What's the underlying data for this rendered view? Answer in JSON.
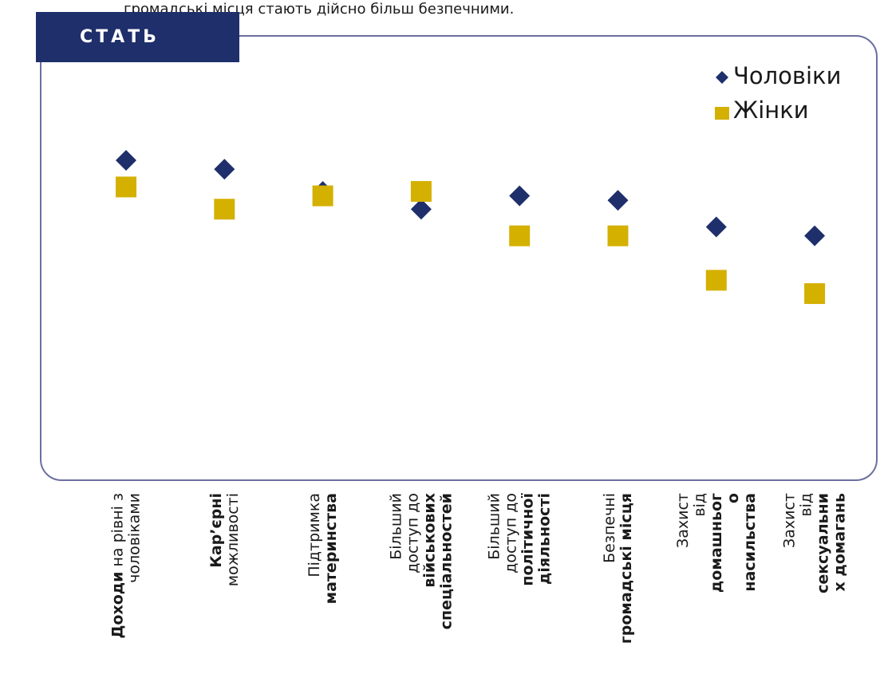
{
  "header": {
    "title": "СТАТЬ",
    "clipped_text": "громадські місця стають дійсно більш безпечними."
  },
  "chart_data": {
    "type": "scatter",
    "categories": [
      [
        [
          {
            "text": "Доходи",
            "bold": true
          },
          {
            "text": " на рівні з"
          }
        ],
        [
          {
            "text": "чоловіками"
          }
        ]
      ],
      [
        [
          {
            "text": "Кар’єрні",
            "bold": true
          }
        ],
        [
          {
            "text": "можливості"
          }
        ]
      ],
      [
        [
          {
            "text": "Підтримка"
          }
        ],
        [
          {
            "text": "материнства",
            "bold": true
          }
        ]
      ],
      [
        [
          {
            "text": "Більший"
          }
        ],
        [
          {
            "text": "доступ до"
          }
        ],
        [
          {
            "text": "військових",
            "bold": true
          }
        ],
        [
          {
            "text": "спеціальностей",
            "bold": true
          }
        ]
      ],
      [
        [
          {
            "text": "Більший"
          }
        ],
        [
          {
            "text": "доступ до"
          }
        ],
        [
          {
            "text": "політичної",
            "bold": true
          }
        ],
        [
          {
            "text": "діяльності",
            "bold": true
          }
        ]
      ],
      [
        [
          {
            "text": "Безпечні"
          }
        ],
        [
          {
            "text": "громадські місця",
            "bold": true
          }
        ]
      ],
      [
        [
          {
            "text": "Захист"
          }
        ],
        [
          {
            "text": "від"
          }
        ],
        [
          {
            "text": "домашньог",
            "bold": true
          }
        ],
        [
          {
            "text": "о",
            "bold": true
          }
        ],
        [
          {
            "text": "насильства",
            "bold": true
          }
        ]
      ],
      [
        [
          {
            "text": "Захист"
          }
        ],
        [
          {
            "text": "від"
          }
        ],
        [
          {
            "text": "сексуальни",
            "bold": true
          }
        ],
        [
          {
            "text": "х домагань",
            "bold": true
          }
        ]
      ]
    ],
    "series": [
      {
        "name": "Чоловіки",
        "color": "#1f2f6b",
        "marker": "diamond",
        "values": [
          72,
          70,
          65,
          61,
          64,
          63,
          57,
          55
        ]
      },
      {
        "name": "Жінки",
        "color": "#d4b000",
        "marker": "square",
        "values": [
          66,
          61,
          64,
          65,
          55,
          55,
          45,
          42
        ]
      }
    ],
    "ylim": [
      0,
      100
    ],
    "legend": "upper right"
  }
}
